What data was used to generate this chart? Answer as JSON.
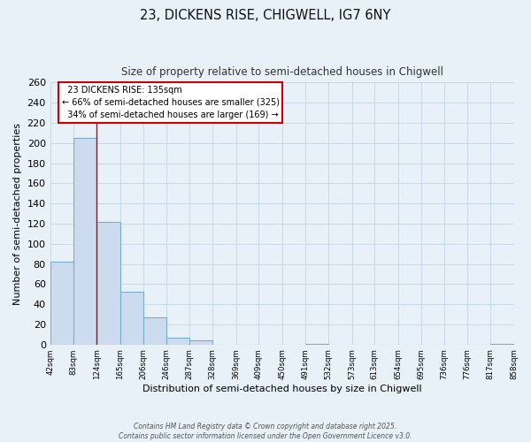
{
  "title_line1": "23, DICKENS RISE, CHIGWELL, IG7 6NY",
  "title_line2": "Size of property relative to semi-detached houses in Chigwell",
  "xlabel": "Distribution of semi-detached houses by size in Chigwell",
  "ylabel": "Number of semi-detached properties",
  "bar_color": "#ccdcee",
  "bar_edge_color": "#7aaccc",
  "bins": [
    42,
    83,
    124,
    165,
    206,
    246,
    287,
    328,
    369,
    409,
    450,
    491,
    532,
    573,
    613,
    654,
    695,
    736,
    776,
    817,
    858
  ],
  "counts": [
    82,
    205,
    122,
    52,
    27,
    7,
    4,
    0,
    0,
    0,
    0,
    1,
    0,
    0,
    0,
    0,
    0,
    0,
    0,
    1
  ],
  "tick_labels": [
    "42sqm",
    "83sqm",
    "124sqm",
    "165sqm",
    "206sqm",
    "246sqm",
    "287sqm",
    "328sqm",
    "369sqm",
    "409sqm",
    "450sqm",
    "491sqm",
    "532sqm",
    "573sqm",
    "613sqm",
    "654sqm",
    "695sqm",
    "736sqm",
    "776sqm",
    "817sqm",
    "858sqm"
  ],
  "ylim": [
    0,
    260
  ],
  "yticks": [
    0,
    20,
    40,
    60,
    80,
    100,
    120,
    140,
    160,
    180,
    200,
    220,
    240,
    260
  ],
  "property_label": "23 DICKENS RISE: 135sqm",
  "pct_smaller": 66,
  "n_smaller": 325,
  "pct_larger": 34,
  "n_larger": 169,
  "vline_x": 124,
  "annotation_box_color": "#ffffff",
  "annotation_box_edge": "#cc0000",
  "vline_color": "#cc0000",
  "grid_color": "#c8d8e8",
  "background_color": "#e8f0f8",
  "footnote1": "Contains HM Land Registry data © Crown copyright and database right 2025.",
  "footnote2": "Contains public sector information licensed under the Open Government Licence v3.0."
}
